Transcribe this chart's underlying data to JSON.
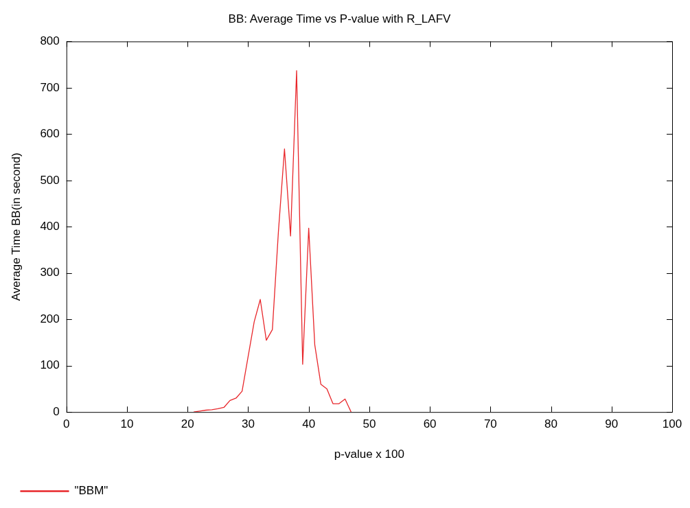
{
  "chart_data": {
    "type": "line",
    "title": "BB: Average Time vs P-value with R_LAFV",
    "xlabel": "p-value x 100",
    "ylabel": "Average Time BB(in second)",
    "series": [
      {
        "name": "\"BBM\"",
        "color": "#e8262a",
        "x": [
          21,
          22,
          23,
          24,
          25,
          26,
          27,
          28,
          29,
          30,
          31,
          32,
          33,
          34,
          35,
          36,
          37,
          38,
          39,
          40,
          41,
          42,
          43,
          44,
          45,
          46,
          47
        ],
        "values": [
          0,
          2,
          4,
          5,
          7,
          10,
          25,
          30,
          45,
          120,
          195,
          243,
          155,
          178,
          390,
          568,
          380,
          737,
          103,
          397,
          145,
          60,
          50,
          18,
          18,
          28,
          0
        ]
      }
    ],
    "xlim": [
      0,
      100
    ],
    "xticks": [
      0,
      10,
      20,
      30,
      40,
      50,
      60,
      70,
      80,
      90,
      100
    ],
    "ylim": [
      0,
      800
    ],
    "yticks": [
      0,
      100,
      200,
      300,
      400,
      500,
      600,
      700,
      800
    ],
    "grid": false,
    "legend": "bottom left",
    "marker": "none",
    "line_style": "solid"
  }
}
